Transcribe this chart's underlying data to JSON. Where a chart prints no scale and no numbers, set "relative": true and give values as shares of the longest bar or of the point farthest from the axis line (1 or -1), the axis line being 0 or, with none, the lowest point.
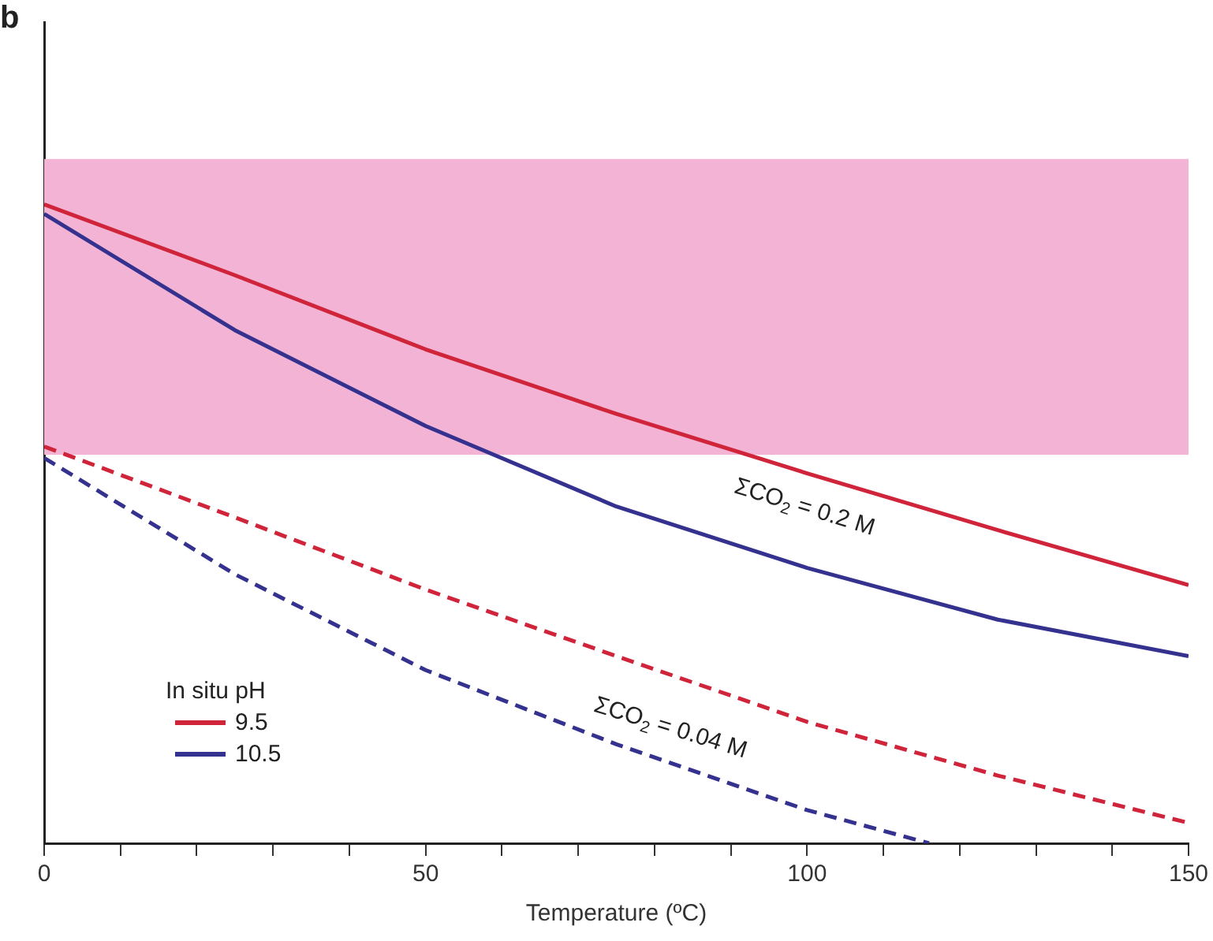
{
  "chart_data": {
    "type": "line",
    "relative": true,
    "xlabel": "Temperature (ºC)",
    "xlim": [
      0,
      150
    ],
    "xticks": [
      0,
      {
        "value": 10,
        "label": null
      },
      {
        "value": 20,
        "label": null
      },
      {
        "value": 30,
        "label": null
      },
      {
        "value": 40,
        "label": null
      },
      50,
      {
        "value": 60,
        "label": null
      },
      {
        "value": 70,
        "label": null
      },
      {
        "value": 80,
        "label": null
      },
      {
        "value": 90,
        "label": null
      },
      100,
      {
        "value": 110,
        "label": null
      },
      {
        "value": 120,
        "label": null
      },
      {
        "value": 130,
        "label": null
      },
      {
        "value": 140,
        "label": null
      },
      150
    ],
    "legend": "bottom left",
    "legend_title": "In situ pH",
    "grid": false,
    "series": [
      {
        "name": "9.5",
        "color": "#d0243a",
        "line_style": "solid",
        "x": [
          0,
          25,
          50,
          75,
          100,
          125,
          150
        ],
        "values": [
          1,
          0.889,
          0.773,
          0.672,
          0.579,
          0.49,
          0.404
        ]
      },
      {
        "name": "10.5",
        "color": "#34318f",
        "line_style": "solid",
        "x": [
          0,
          25,
          50,
          75,
          100,
          125,
          150
        ],
        "values": [
          0.985,
          0.803,
          0.653,
          0.527,
          0.431,
          0.35,
          0.293
        ]
      },
      {
        "color": "#d0243a",
        "line_style": "dashed",
        "x": [
          0,
          25,
          50,
          75,
          100,
          125,
          150
        ],
        "values": [
          0.621,
          0.51,
          0.397,
          0.293,
          0.19,
          0.106,
          0.032
        ]
      },
      {
        "color": "#34318f",
        "line_style": "dashed",
        "x": [
          0,
          25,
          50,
          75,
          100,
          116
        ],
        "values": [
          0.603,
          0.421,
          0.271,
          0.155,
          0.052,
          0
        ]
      }
    ],
    "bands": [
      {
        "axis": "y",
        "from": 0.608,
        "to": 1.071,
        "color": "#f2b3d4"
      }
    ],
    "annotations": [
      "b",
      "ΣCO$_{2}$ = 0.2 M",
      "ΣCO$_{2}$ = 0.04 M"
    ]
  }
}
